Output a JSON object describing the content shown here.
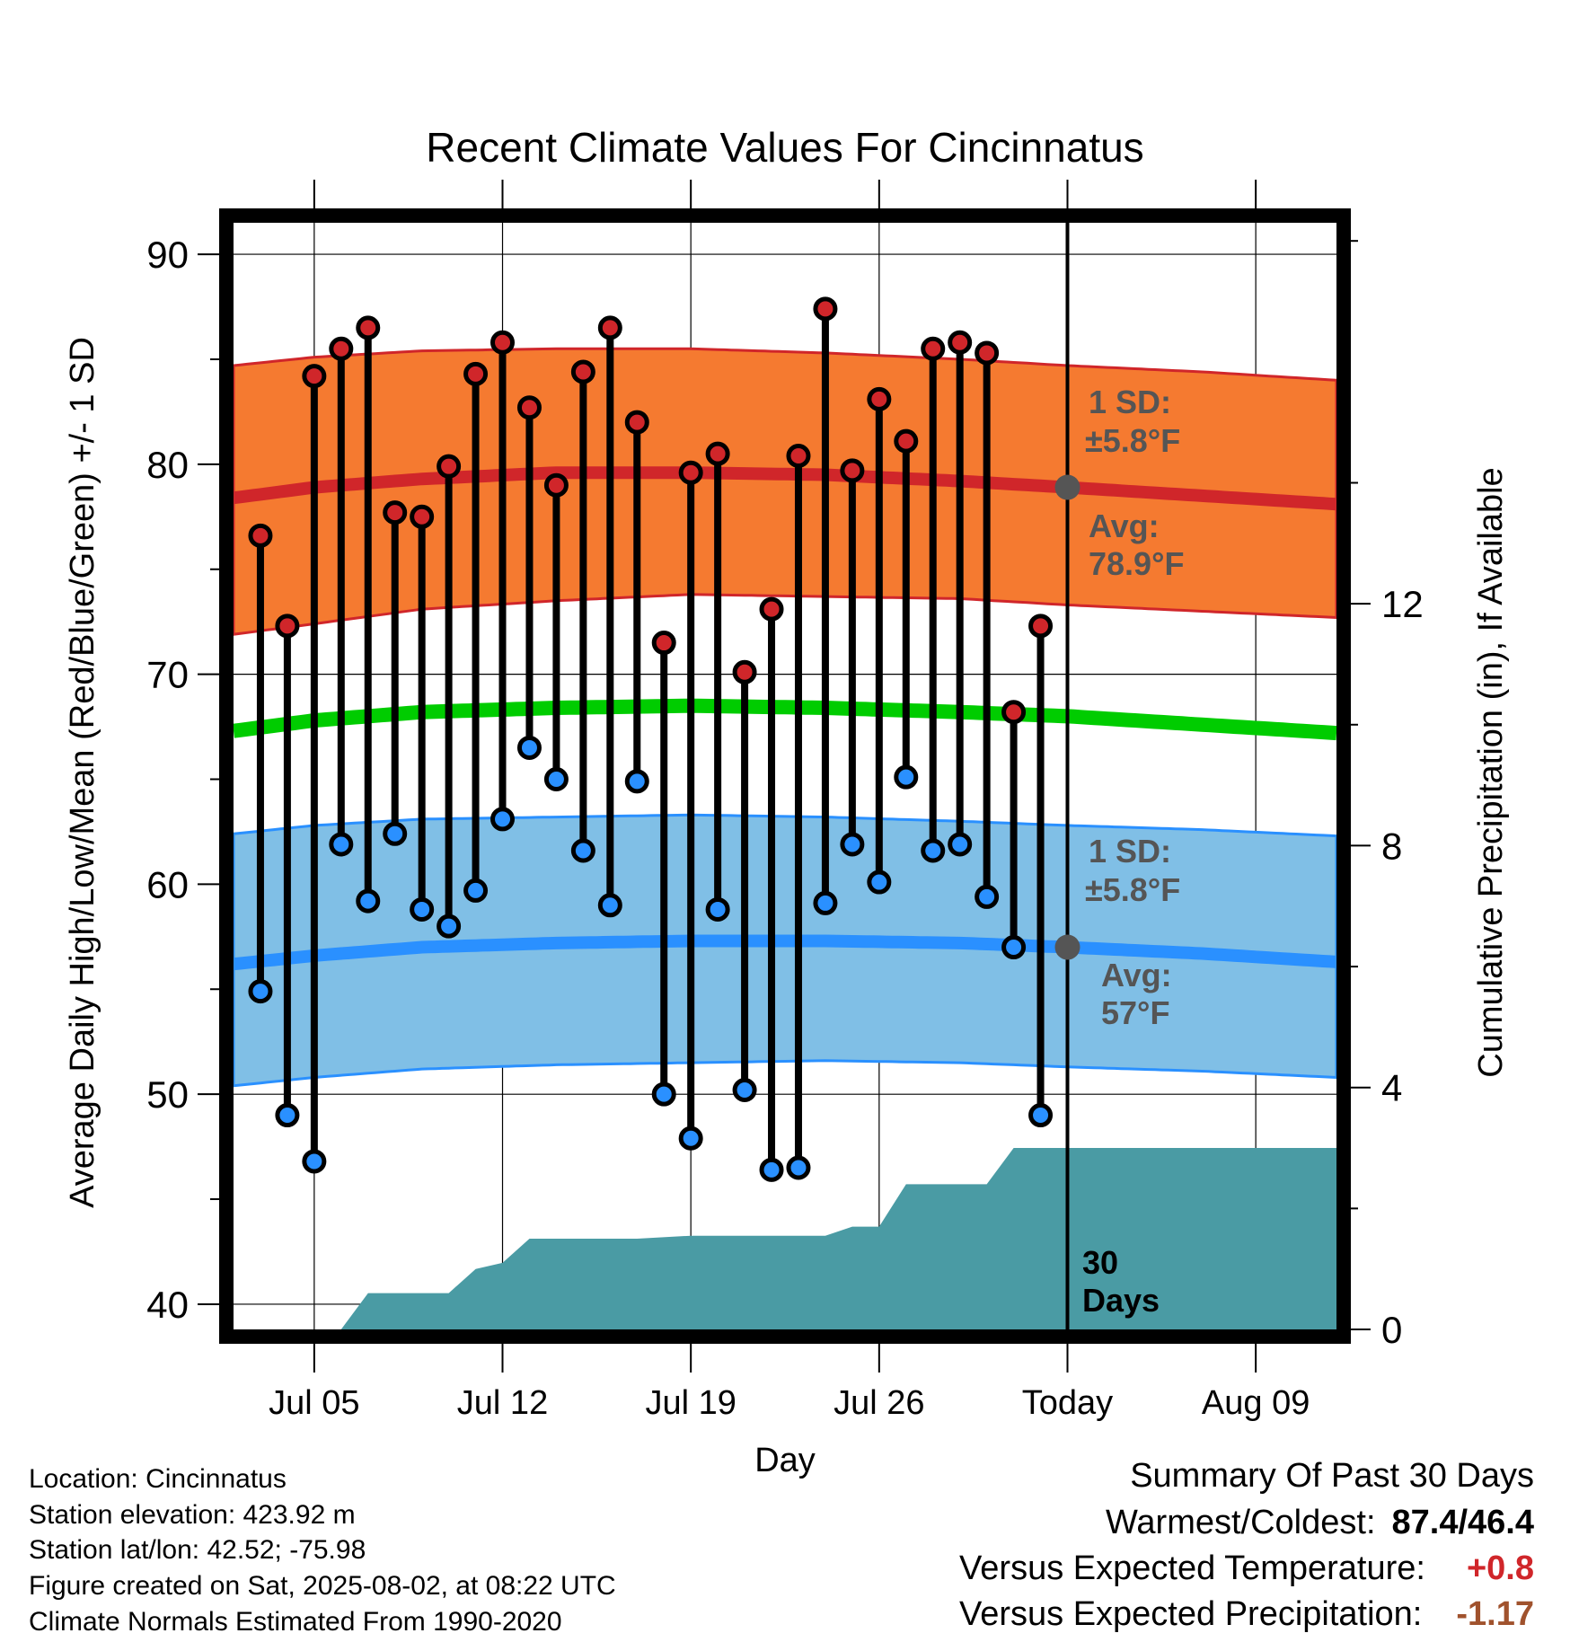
{
  "chart_data": {
    "type": "line",
    "title": "Recent Climate Values For Cincinnatus",
    "xlabel": "Day",
    "ylabel": "Average Daily High/Low/Mean (Red/Blue/Green) +/- 1 SD",
    "y2label": "Cumulative Precipitation (in), If Available",
    "ylim": [
      38.8,
      91.5
    ],
    "y2lim": [
      0,
      18.3
    ],
    "yticks": [
      40,
      50,
      60,
      70,
      80,
      90
    ],
    "y2ticks": [
      0,
      4,
      8,
      12
    ],
    "x_range": [
      "2025-07-02",
      "2025-08-12"
    ],
    "x_tick_labels": [
      {
        "date": "2025-07-05",
        "label": "Jul 05"
      },
      {
        "date": "2025-07-12",
        "label": "Jul 12"
      },
      {
        "date": "2025-07-19",
        "label": "Jul 19"
      },
      {
        "date": "2025-07-26",
        "label": "Jul 26"
      },
      {
        "date": "2025-08-02",
        "label": "Today"
      },
      {
        "date": "2025-08-09",
        "label": "Aug 09"
      }
    ],
    "today": "2025-08-02",
    "grid": true,
    "colors": {
      "high": "#d0262a",
      "low": "#2a90ff",
      "mean": "#00cc00",
      "high_band": "#f57a30",
      "low_band": "#80bfe6",
      "precip": "#4a9ba4",
      "annotation": "#555555",
      "warm_value": "#d0262a",
      "precip_value": "#a0522d"
    },
    "daily": {
      "dates": [
        "2025-07-03",
        "2025-07-04",
        "2025-07-05",
        "2025-07-06",
        "2025-07-07",
        "2025-07-08",
        "2025-07-09",
        "2025-07-10",
        "2025-07-11",
        "2025-07-12",
        "2025-07-13",
        "2025-07-14",
        "2025-07-15",
        "2025-07-16",
        "2025-07-17",
        "2025-07-18",
        "2025-07-19",
        "2025-07-20",
        "2025-07-21",
        "2025-07-22",
        "2025-07-23",
        "2025-07-24",
        "2025-07-25",
        "2025-07-26",
        "2025-07-27",
        "2025-07-28",
        "2025-07-29",
        "2025-07-30",
        "2025-07-31",
        "2025-08-01"
      ],
      "highs": [
        76.6,
        72.3,
        84.2,
        85.5,
        86.5,
        77.7,
        77.5,
        79.9,
        84.3,
        85.8,
        82.7,
        79.0,
        84.4,
        86.5,
        82.0,
        71.5,
        79.6,
        80.5,
        70.1,
        73.1,
        80.4,
        87.4,
        79.7,
        83.1,
        81.1,
        85.5,
        85.8,
        85.3,
        68.2,
        72.3
      ],
      "lows": [
        54.9,
        49.0,
        46.8,
        61.9,
        59.2,
        62.4,
        58.8,
        58.0,
        59.7,
        63.1,
        66.5,
        65.0,
        61.6,
        59.0,
        64.9,
        50.0,
        47.9,
        58.8,
        50.2,
        46.4,
        46.5,
        59.1,
        61.9,
        60.1,
        65.1,
        61.6,
        61.9,
        59.4,
        57.0,
        49.0
      ]
    },
    "normals": {
      "dates": [
        "2025-07-02",
        "2025-07-05",
        "2025-07-09",
        "2025-07-14",
        "2025-07-19",
        "2025-07-24",
        "2025-07-29",
        "2025-08-02",
        "2025-08-07",
        "2025-08-12"
      ],
      "high_mean": [
        78.4,
        78.9,
        79.3,
        79.6,
        79.6,
        79.5,
        79.2,
        78.9,
        78.5,
        78.1
      ],
      "high_sd_upper": [
        84.7,
        85.1,
        85.4,
        85.5,
        85.5,
        85.3,
        85.0,
        84.7,
        84.4,
        84.0
      ],
      "high_sd_lower": [
        71.9,
        72.4,
        73.1,
        73.5,
        73.8,
        73.7,
        73.6,
        73.3,
        73.0,
        72.7
      ],
      "mean": [
        67.3,
        67.8,
        68.2,
        68.4,
        68.5,
        68.4,
        68.2,
        68.0,
        67.6,
        67.2
      ],
      "low_mean": [
        56.2,
        56.6,
        57.0,
        57.2,
        57.3,
        57.3,
        57.2,
        57.0,
        56.7,
        56.3
      ],
      "low_sd_upper": [
        62.4,
        62.8,
        63.1,
        63.2,
        63.3,
        63.2,
        63.0,
        62.8,
        62.6,
        62.3
      ],
      "low_sd_lower": [
        50.4,
        50.8,
        51.2,
        51.4,
        51.5,
        51.6,
        51.5,
        51.3,
        51.1,
        50.8
      ]
    },
    "precip": {
      "dates": [
        "2025-07-02",
        "2025-07-06",
        "2025-07-07",
        "2025-07-10",
        "2025-07-11",
        "2025-07-12",
        "2025-07-13",
        "2025-07-17",
        "2025-07-19",
        "2025-07-24",
        "2025-07-25",
        "2025-07-26",
        "2025-07-27",
        "2025-07-30",
        "2025-07-31",
        "2025-08-12"
      ],
      "cumulative": [
        0,
        0,
        0.6,
        0.6,
        1.0,
        1.1,
        1.5,
        1.5,
        1.55,
        1.55,
        1.7,
        1.7,
        2.4,
        2.4,
        3.0,
        3.0
      ]
    }
  },
  "annotations": {
    "high": {
      "sd_line1": "1 SD:",
      "sd_line2": "±5.8°F",
      "avg_line1": "Avg:",
      "avg_line2": "78.9°F"
    },
    "low": {
      "sd_line1": "1 SD:",
      "sd_line2": "±5.8°F",
      "avg_line1": "Avg:",
      "avg_line2": "57°F"
    },
    "days_line1": "30",
    "days_line2": "Days"
  },
  "footer": {
    "location": "Location: Cincinnatus",
    "elevation": "Station elevation: 423.92 m",
    "latlon": "Station lat/lon: 42.52; -75.98",
    "created": "Figure created on Sat, 2025-08-02, at 08:22 UTC",
    "normals": "Climate Normals Estimated From 1990-2020"
  },
  "summary": {
    "title": "Summary Of Past 30 Days",
    "warmest_label": "Warmest/Coldest:",
    "warmest_value": "87.4/46.4",
    "temp_label": "Versus Expected Temperature:",
    "temp_value": "+0.8",
    "precip_label": "Versus Expected Precipitation:",
    "precip_value": "-1.17"
  }
}
